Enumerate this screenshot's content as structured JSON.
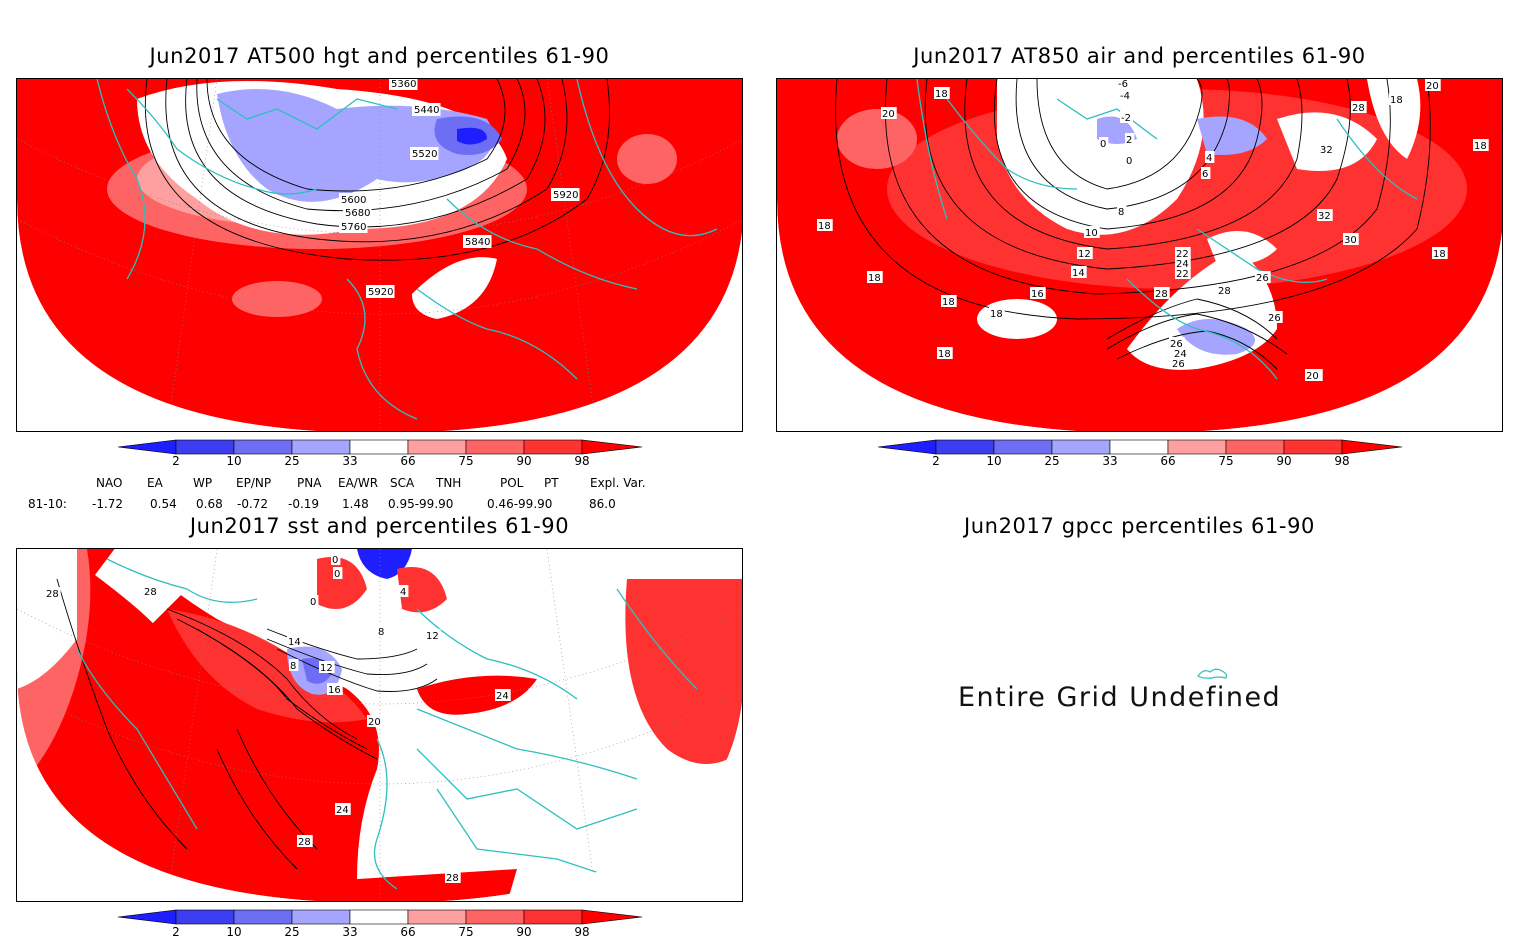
{
  "panels": {
    "hgt500": {
      "title": "Jun2017 AT500 hgt and percentiles 61-90",
      "contour_labels": [
        "5360",
        "5440",
        "5520",
        "5600",
        "5680",
        "5760",
        "5840",
        "5920",
        "5920"
      ]
    },
    "air850": {
      "title": "Jun2017 AT850 air and percentiles 61-90",
      "contour_labels": [
        "-6",
        "-4",
        "-2",
        "2",
        "0",
        "0",
        "4",
        "6",
        "8",
        "10",
        "12",
        "14",
        "16",
        "18",
        "18",
        "18",
        "18",
        "18",
        "18",
        "18",
        "18",
        "20",
        "20",
        "20",
        "22",
        "24",
        "26",
        "26",
        "26",
        "28",
        "28",
        "28",
        "30",
        "32",
        "32",
        "18",
        "20",
        "22",
        "24",
        "26"
      ]
    },
    "sst": {
      "title": "Jun2017 sst and percentiles 61-90",
      "contour_labels": [
        "28",
        "0",
        "0",
        "0",
        "4",
        "8",
        "8",
        "12",
        "12",
        "14",
        "16",
        "20",
        "24",
        "24",
        "28",
        "28",
        "28"
      ]
    },
    "gpcc": {
      "title": "Jun2017 gpcc percentiles 61-90",
      "message": "Entire Grid Undefined"
    }
  },
  "colorbar": {
    "labels": [
      "2",
      "10",
      "25",
      "33",
      "66",
      "75",
      "90",
      "98"
    ],
    "colors": {
      "below2": "#1e1eff",
      "2_10": "#3c3cf0",
      "10_25": "#6e6ef5",
      "25_33": "#a5a5ff",
      "33_66": "#ffffff",
      "66_75": "#ffa0a0",
      "75_90": "#ff6464",
      "90_98": "#ff3232",
      "above98": "#ff0000"
    }
  },
  "indices": {
    "headers": [
      "NAO",
      "EA",
      "WP",
      "EP/NP",
      "PNA",
      "EA/WR",
      "SCA",
      "TNH",
      "POL",
      "PT",
      "Expl. Var."
    ],
    "row_label": "81-10:",
    "values": [
      "-1.72",
      "0.54",
      "0.68",
      "-0.72",
      "-0.19",
      "1.48",
      "0.95-99.90",
      "0.46-99.90",
      "86.0"
    ]
  },
  "colors": {
    "coast": "#2fbfbf",
    "red": "#ff0000",
    "contour": "#000000"
  }
}
